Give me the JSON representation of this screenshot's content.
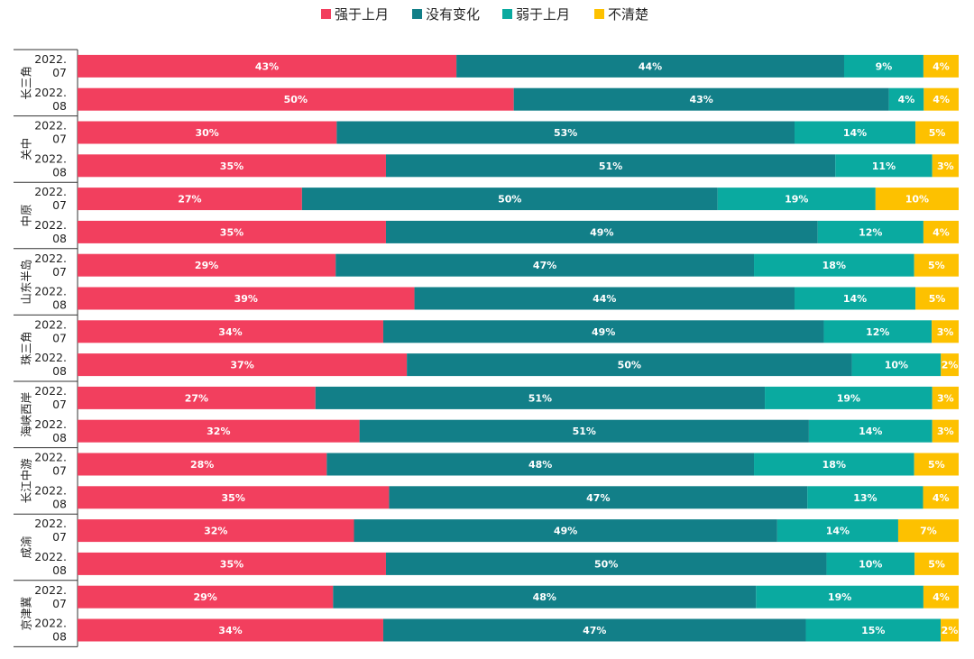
{
  "chart_data": {
    "type": "bar",
    "orientation": "horizontal",
    "stacked": "percent",
    "title": "",
    "legend_position": "top-center",
    "colors": [
      "#f23f5e",
      "#127f88",
      "#0aaaa0",
      "#fdc100"
    ],
    "series": [
      {
        "name": "强于上月",
        "values": [
          43,
          50,
          30,
          35,
          27,
          35,
          29,
          39,
          34,
          37,
          27,
          32,
          28,
          35,
          32,
          35,
          29,
          34
        ]
      },
      {
        "name": "没有变化",
        "values": [
          44,
          43,
          53,
          51,
          50,
          49,
          47,
          44,
          49,
          50,
          51,
          51,
          48,
          47,
          49,
          50,
          48,
          47
        ]
      },
      {
        "name": "弱于上月",
        "values": [
          9,
          4,
          14,
          11,
          19,
          12,
          18,
          14,
          12,
          10,
          19,
          14,
          18,
          13,
          14,
          10,
          19,
          15
        ]
      },
      {
        "name": "不清楚",
        "values": [
          4,
          4,
          5,
          3,
          10,
          4,
          5,
          5,
          3,
          2,
          3,
          3,
          5,
          4,
          7,
          5,
          4,
          2
        ]
      }
    ],
    "groups": [
      {
        "region": "长三角",
        "periods": [
          [
            "2022.",
            "07"
          ],
          [
            "2022.",
            "08"
          ]
        ]
      },
      {
        "region": "关中",
        "periods": [
          [
            "2022.",
            "07"
          ],
          [
            "2022.",
            "08"
          ]
        ]
      },
      {
        "region": "中原",
        "periods": [
          [
            "2022.",
            "07"
          ],
          [
            "2022.",
            "08"
          ]
        ]
      },
      {
        "region": "山东半岛",
        "periods": [
          [
            "2022.",
            "07"
          ],
          [
            "2022.",
            "08"
          ]
        ]
      },
      {
        "region": "珠三角",
        "periods": [
          [
            "2022.",
            "07"
          ],
          [
            "2022.",
            "08"
          ]
        ]
      },
      {
        "region": "海峡西岸",
        "periods": [
          [
            "2022.",
            "07"
          ],
          [
            "2022.",
            "08"
          ]
        ]
      },
      {
        "region": "长江中游",
        "periods": [
          [
            "2022.",
            "07"
          ],
          [
            "2022.",
            "08"
          ]
        ]
      },
      {
        "region": "成渝",
        "periods": [
          [
            "2022.",
            "07"
          ],
          [
            "2022.",
            "08"
          ]
        ]
      },
      {
        "region": "京津冀",
        "periods": [
          [
            "2022.",
            "07"
          ],
          [
            "2022.",
            "08"
          ]
        ]
      }
    ]
  }
}
